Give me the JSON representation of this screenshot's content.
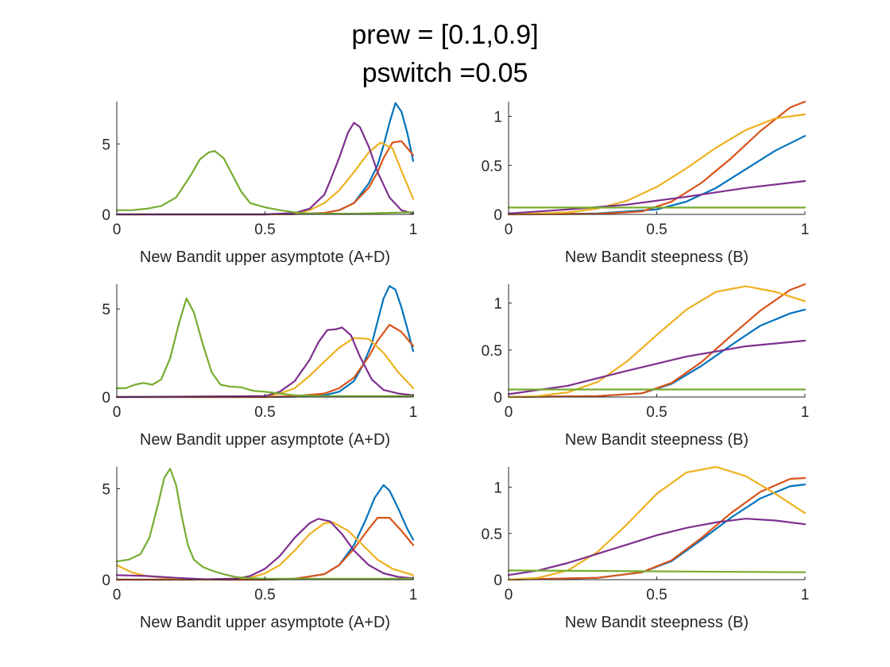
{
  "title_lines": [
    "prew = [0.1,0.9]",
    "pswitch =0.05"
  ],
  "colors": {
    "blue": "#0072BD",
    "orange": "#D95319",
    "yellow": "#EDB120",
    "purple": "#7E2F8E",
    "green": "#77AC30",
    "axis": "#262626"
  },
  "chart_data": [
    {
      "id": "r1-left",
      "type": "line",
      "xlabel": "New Bandit upper asymptote (A+D)",
      "ylabel": "",
      "xlim": [
        0,
        1
      ],
      "ylim": [
        0,
        8
      ],
      "xticks": [
        0,
        0.5,
        1
      ],
      "xtick_labels": [
        "0",
        "0.5",
        "1"
      ],
      "yticks": [
        0,
        5
      ],
      "ytick_labels": [
        "0",
        "5"
      ],
      "grid": false,
      "series": [
        {
          "color": "blue",
          "x": [
            0,
            0.5,
            0.6,
            0.7,
            0.75,
            0.8,
            0.85,
            0.88,
            0.9,
            0.92,
            0.94,
            0.96,
            0.98,
            1.0
          ],
          "y": [
            0,
            0,
            0.02,
            0.1,
            0.3,
            0.8,
            2.2,
            3.5,
            4.9,
            6.5,
            7.9,
            7.3,
            5.8,
            3.8
          ]
        },
        {
          "color": "orange",
          "x": [
            0,
            0.5,
            0.6,
            0.7,
            0.75,
            0.8,
            0.85,
            0.88,
            0.9,
            0.93,
            0.96,
            1.0
          ],
          "y": [
            0,
            0,
            0.02,
            0.1,
            0.3,
            0.8,
            1.9,
            3.0,
            4.0,
            5.1,
            5.2,
            4.2
          ]
        },
        {
          "color": "yellow",
          "x": [
            0,
            0.5,
            0.6,
            0.65,
            0.7,
            0.75,
            0.8,
            0.85,
            0.89,
            0.93,
            0.96,
            1.0
          ],
          "y": [
            0,
            0,
            0.05,
            0.3,
            0.8,
            1.7,
            3.0,
            4.4,
            5.1,
            4.7,
            3.1,
            1.1
          ]
        },
        {
          "color": "purple",
          "x": [
            0,
            0.5,
            0.6,
            0.65,
            0.7,
            0.72,
            0.75,
            0.78,
            0.8,
            0.82,
            0.85,
            0.88,
            0.92,
            0.96,
            1.0
          ],
          "y": [
            0,
            0,
            0.1,
            0.4,
            1.4,
            2.4,
            4.0,
            5.8,
            6.5,
            6.2,
            4.8,
            3.0,
            1.2,
            0.3,
            0.05
          ]
        },
        {
          "color": "green",
          "x": [
            0,
            0.05,
            0.1,
            0.15,
            0.2,
            0.25,
            0.28,
            0.31,
            0.33,
            0.36,
            0.39,
            0.42,
            0.45,
            0.5,
            0.55,
            0.6,
            0.65,
            0.7,
            0.8,
            0.9,
            1.0
          ],
          "y": [
            0.3,
            0.3,
            0.4,
            0.6,
            1.2,
            2.8,
            3.9,
            4.4,
            4.5,
            4.0,
            2.8,
            1.6,
            0.8,
            0.5,
            0.3,
            0.15,
            0.05,
            0.05,
            0.05,
            0.1,
            0.15
          ]
        }
      ]
    },
    {
      "id": "r1-right",
      "type": "line",
      "xlabel": "New Bandit steepness (B)",
      "ylabel": "",
      "xlim": [
        0,
        1
      ],
      "ylim": [
        0,
        1.15
      ],
      "xticks": [
        0,
        0.5,
        1
      ],
      "xtick_labels": [
        "0",
        "0.5",
        "1"
      ],
      "yticks": [
        0,
        0.5,
        1
      ],
      "ytick_labels": [
        "0",
        "0.5",
        "1"
      ],
      "grid": false,
      "series": [
        {
          "color": "blue",
          "x": [
            0,
            0.3,
            0.5,
            0.6,
            0.7,
            0.8,
            0.9,
            1.0
          ],
          "y": [
            0,
            0.01,
            0.05,
            0.13,
            0.27,
            0.46,
            0.65,
            0.8
          ]
        },
        {
          "color": "orange",
          "x": [
            0,
            0.3,
            0.45,
            0.55,
            0.65,
            0.75,
            0.85,
            0.95,
            1.0
          ],
          "y": [
            0,
            0.005,
            0.03,
            0.13,
            0.32,
            0.57,
            0.85,
            1.09,
            1.15
          ]
        },
        {
          "color": "yellow",
          "x": [
            0,
            0.2,
            0.3,
            0.4,
            0.5,
            0.6,
            0.7,
            0.8,
            0.9,
            1.0
          ],
          "y": [
            0,
            0.02,
            0.06,
            0.14,
            0.28,
            0.47,
            0.68,
            0.86,
            0.98,
            1.02
          ]
        },
        {
          "color": "purple",
          "x": [
            0,
            0.2,
            0.4,
            0.6,
            0.8,
            1.0
          ],
          "y": [
            0.01,
            0.05,
            0.1,
            0.18,
            0.27,
            0.34
          ]
        },
        {
          "color": "green",
          "x": [
            0,
            1.0
          ],
          "y": [
            0.07,
            0.07
          ]
        }
      ]
    },
    {
      "id": "r2-left",
      "type": "line",
      "xlabel": "New Bandit upper asymptote (A+D)",
      "ylabel": "",
      "xlim": [
        0,
        1
      ],
      "ylim": [
        0,
        6.4
      ],
      "xticks": [
        0,
        0.5,
        1
      ],
      "xtick_labels": [
        "0",
        "0.5",
        "1"
      ],
      "yticks": [
        0,
        5
      ],
      "ytick_labels": [
        "0",
        "5"
      ],
      "grid": false,
      "series": [
        {
          "color": "blue",
          "x": [
            0,
            0.5,
            0.6,
            0.7,
            0.75,
            0.8,
            0.83,
            0.86,
            0.88,
            0.9,
            0.92,
            0.94,
            0.96,
            0.98,
            1.0
          ],
          "y": [
            0,
            0,
            0.02,
            0.1,
            0.3,
            0.9,
            1.8,
            3.0,
            4.3,
            5.6,
            6.3,
            6.1,
            5.1,
            3.9,
            2.6
          ]
        },
        {
          "color": "orange",
          "x": [
            0,
            0.5,
            0.6,
            0.7,
            0.75,
            0.8,
            0.85,
            0.88,
            0.92,
            0.96,
            1.0
          ],
          "y": [
            0,
            0,
            0.05,
            0.2,
            0.5,
            1.1,
            2.3,
            3.2,
            4.1,
            3.7,
            2.9
          ]
        },
        {
          "color": "yellow",
          "x": [
            0,
            0.5,
            0.55,
            0.6,
            0.65,
            0.7,
            0.75,
            0.8,
            0.85,
            0.9,
            0.95,
            1.0
          ],
          "y": [
            0,
            0.05,
            0.2,
            0.5,
            1.2,
            2.0,
            2.8,
            3.35,
            3.3,
            2.5,
            1.4,
            0.5
          ]
        },
        {
          "color": "purple",
          "x": [
            0,
            0.5,
            0.55,
            0.6,
            0.65,
            0.68,
            0.71,
            0.74,
            0.76,
            0.79,
            0.82,
            0.86,
            0.9,
            0.95,
            1.0
          ],
          "y": [
            0,
            0.05,
            0.3,
            0.9,
            2.1,
            3.1,
            3.8,
            3.85,
            3.95,
            3.5,
            2.3,
            1.0,
            0.4,
            0.2,
            0.1
          ]
        },
        {
          "color": "green",
          "x": [
            0,
            0.03,
            0.06,
            0.09,
            0.12,
            0.15,
            0.18,
            0.21,
            0.235,
            0.26,
            0.29,
            0.32,
            0.35,
            0.38,
            0.42,
            0.46,
            0.5,
            0.55,
            0.6,
            0.7,
            0.8,
            0.9,
            1.0
          ],
          "y": [
            0.5,
            0.5,
            0.7,
            0.8,
            0.7,
            1.0,
            2.2,
            4.2,
            5.6,
            4.8,
            3.0,
            1.4,
            0.7,
            0.6,
            0.55,
            0.35,
            0.3,
            0.2,
            0.1,
            0.05,
            0.05,
            0.05,
            0.05
          ]
        }
      ]
    },
    {
      "id": "r2-right",
      "type": "line",
      "xlabel": "New Bandit steepness (B)",
      "ylabel": "",
      "xlim": [
        0,
        1
      ],
      "ylim": [
        0,
        1.2
      ],
      "xticks": [
        0,
        0.5,
        1
      ],
      "xtick_labels": [
        "0",
        "0.5",
        "1"
      ],
      "yticks": [
        0,
        0.5,
        1
      ],
      "ytick_labels": [
        "0",
        "0.5",
        "1"
      ],
      "grid": false,
      "series": [
        {
          "color": "blue",
          "x": [
            0,
            0.3,
            0.45,
            0.55,
            0.65,
            0.75,
            0.85,
            0.95,
            1.0
          ],
          "y": [
            0,
            0.01,
            0.04,
            0.14,
            0.33,
            0.55,
            0.76,
            0.89,
            0.93
          ]
        },
        {
          "color": "orange",
          "x": [
            0,
            0.3,
            0.45,
            0.55,
            0.65,
            0.75,
            0.85,
            0.95,
            1.0
          ],
          "y": [
            0,
            0.01,
            0.04,
            0.15,
            0.37,
            0.65,
            0.92,
            1.14,
            1.2
          ]
        },
        {
          "color": "yellow",
          "x": [
            0,
            0.1,
            0.2,
            0.3,
            0.4,
            0.5,
            0.6,
            0.7,
            0.8,
            0.9,
            1.0
          ],
          "y": [
            0,
            0.01,
            0.05,
            0.16,
            0.38,
            0.66,
            0.93,
            1.12,
            1.18,
            1.12,
            1.02
          ]
        },
        {
          "color": "purple",
          "x": [
            0,
            0.2,
            0.4,
            0.6,
            0.8,
            1.0
          ],
          "y": [
            0.03,
            0.12,
            0.28,
            0.43,
            0.54,
            0.6
          ]
        },
        {
          "color": "green",
          "x": [
            0,
            1.0
          ],
          "y": [
            0.08,
            0.08
          ]
        }
      ]
    },
    {
      "id": "r3-left",
      "type": "line",
      "xlabel": "New Bandit upper asymptote (A+D)",
      "ylabel": "",
      "xlim": [
        0,
        1
      ],
      "ylim": [
        0,
        6.2
      ],
      "xticks": [
        0,
        0.5,
        1
      ],
      "xtick_labels": [
        "0",
        "0.5",
        "1"
      ],
      "yticks": [
        0,
        5
      ],
      "ytick_labels": [
        "0",
        "5"
      ],
      "grid": false,
      "series": [
        {
          "color": "blue",
          "x": [
            0,
            0.5,
            0.6,
            0.7,
            0.75,
            0.8,
            0.84,
            0.87,
            0.9,
            0.92,
            0.95,
            0.98,
            1.0
          ],
          "y": [
            0,
            0,
            0.05,
            0.3,
            0.8,
            1.9,
            3.3,
            4.5,
            5.2,
            4.9,
            3.9,
            2.8,
            2.2
          ]
        },
        {
          "color": "orange",
          "x": [
            0,
            0.5,
            0.6,
            0.7,
            0.75,
            0.8,
            0.85,
            0.88,
            0.92,
            0.96,
            1.0
          ],
          "y": [
            0,
            0,
            0.05,
            0.3,
            0.8,
            1.7,
            2.8,
            3.4,
            3.4,
            2.7,
            1.9
          ]
        },
        {
          "color": "yellow",
          "x": [
            0,
            0.05,
            0.1,
            0.2,
            0.3,
            0.45,
            0.5,
            0.55,
            0.6,
            0.65,
            0.7,
            0.73,
            0.78,
            0.83,
            0.88,
            0.93,
            1.0
          ],
          "y": [
            0.8,
            0.4,
            0.2,
            0.05,
            0,
            0.1,
            0.35,
            0.8,
            1.6,
            2.5,
            3.1,
            3.15,
            2.7,
            1.9,
            1.1,
            0.6,
            0.25
          ]
        },
        {
          "color": "purple",
          "x": [
            0,
            0.1,
            0.2,
            0.3,
            0.4,
            0.45,
            0.5,
            0.55,
            0.6,
            0.65,
            0.68,
            0.72,
            0.76,
            0.8,
            0.85,
            0.9,
            0.95,
            1.0
          ],
          "y": [
            0.25,
            0.2,
            0.1,
            0.02,
            0.05,
            0.2,
            0.6,
            1.3,
            2.3,
            3.1,
            3.35,
            3.2,
            2.5,
            1.6,
            0.8,
            0.35,
            0.15,
            0.08
          ]
        },
        {
          "color": "green",
          "x": [
            0,
            0.04,
            0.08,
            0.11,
            0.14,
            0.16,
            0.18,
            0.2,
            0.22,
            0.24,
            0.26,
            0.29,
            0.32,
            0.36,
            0.4,
            0.45,
            0.5,
            0.6,
            0.7,
            0.8,
            0.9,
            1.0
          ],
          "y": [
            1.0,
            1.1,
            1.4,
            2.3,
            4.2,
            5.6,
            6.1,
            5.2,
            3.4,
            1.9,
            1.1,
            0.7,
            0.5,
            0.3,
            0.15,
            0.08,
            0.05,
            0.05,
            0.05,
            0.05,
            0.05,
            0.05
          ]
        }
      ]
    },
    {
      "id": "r3-right",
      "type": "line",
      "xlabel": "New Bandit steepness (B)",
      "ylabel": "",
      "xlim": [
        0,
        1
      ],
      "ylim": [
        0,
        1.22
      ],
      "xticks": [
        0,
        0.5,
        1
      ],
      "xtick_labels": [
        "0",
        "0.5",
        "1"
      ],
      "yticks": [
        0,
        0.5,
        1
      ],
      "ytick_labels": [
        "0",
        "0.5",
        "1"
      ],
      "grid": false,
      "series": [
        {
          "color": "blue",
          "x": [
            0,
            0.3,
            0.45,
            0.55,
            0.65,
            0.75,
            0.85,
            0.95,
            1.0
          ],
          "y": [
            0,
            0.02,
            0.08,
            0.2,
            0.43,
            0.67,
            0.88,
            1.01,
            1.03
          ]
        },
        {
          "color": "orange",
          "x": [
            0,
            0.3,
            0.45,
            0.55,
            0.65,
            0.75,
            0.85,
            0.95,
            1.0
          ],
          "y": [
            0,
            0.02,
            0.08,
            0.21,
            0.45,
            0.72,
            0.95,
            1.09,
            1.1
          ]
        },
        {
          "color": "yellow",
          "x": [
            0,
            0.1,
            0.2,
            0.3,
            0.4,
            0.5,
            0.6,
            0.7,
            0.8,
            0.9,
            1.0
          ],
          "y": [
            0,
            0.02,
            0.1,
            0.3,
            0.6,
            0.93,
            1.16,
            1.22,
            1.12,
            0.93,
            0.72
          ]
        },
        {
          "color": "purple",
          "x": [
            0,
            0.1,
            0.2,
            0.3,
            0.4,
            0.5,
            0.6,
            0.7,
            0.8,
            0.9,
            1.0
          ],
          "y": [
            0.05,
            0.1,
            0.18,
            0.28,
            0.38,
            0.48,
            0.56,
            0.62,
            0.66,
            0.64,
            0.6
          ]
        },
        {
          "color": "green",
          "x": [
            0,
            1.0
          ],
          "y": [
            0.1,
            0.08
          ]
        }
      ]
    }
  ]
}
